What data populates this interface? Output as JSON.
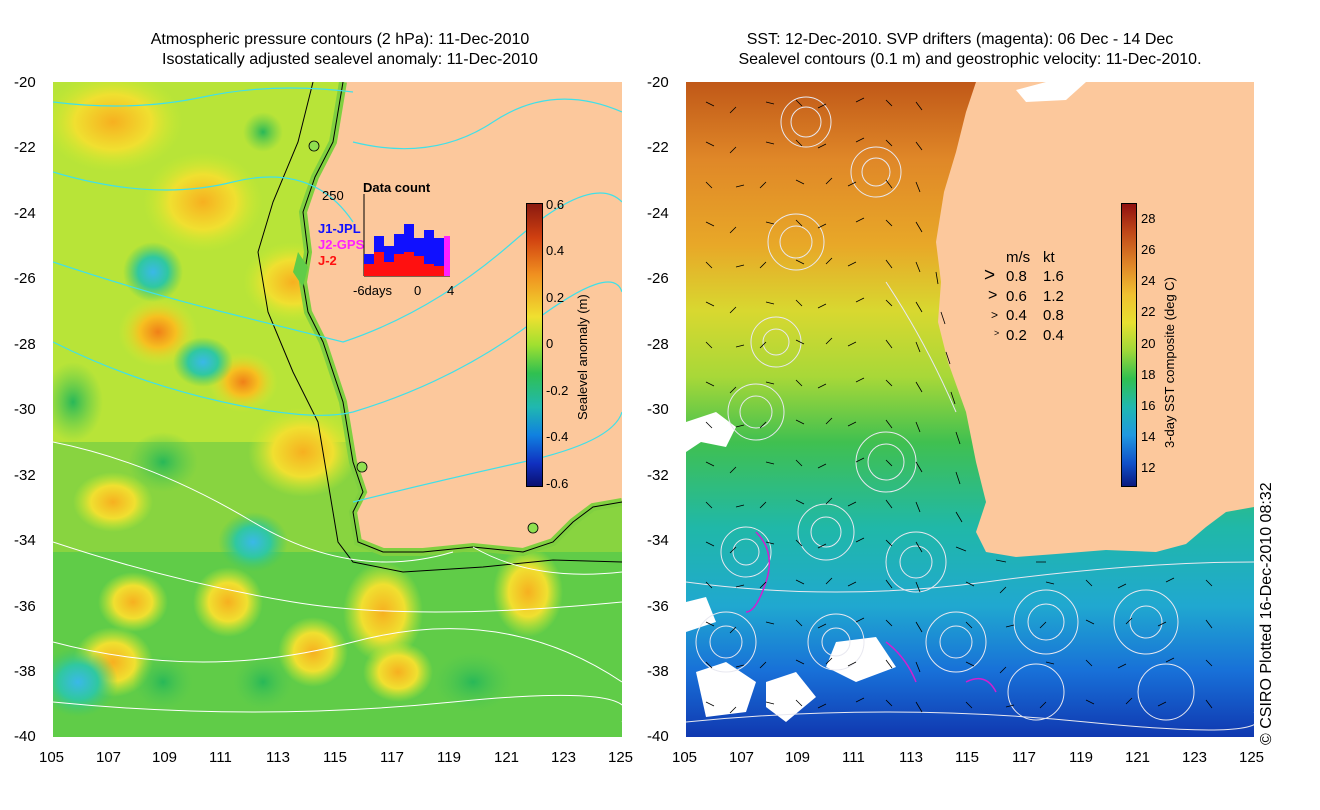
{
  "left_panel": {
    "title_line1": "Atmospheric pressure contours (2 hPa): 11-Dec-2010",
    "title_line2": "Isostatically adjusted sealevel anomaly: 11-Dec-2010",
    "colorbar": {
      "label": "Sealevel anomaly (m)",
      "ticks": [
        "0.6",
        "0.4",
        "0.2",
        "0",
        "-0.2",
        "-0.4",
        "-0.6"
      ],
      "range": [
        -0.6,
        0.6
      ]
    },
    "inset": {
      "title": "Data count",
      "ymax_label": "250",
      "x_labels": [
        "-6days",
        "0",
        "4"
      ],
      "legend": [
        {
          "name": "J1-JPL",
          "color": "#1010ff"
        },
        {
          "name": "J2-GPS",
          "color": "#ff20ff"
        },
        {
          "name": "J-2",
          "color": "#ff1010"
        }
      ]
    }
  },
  "right_panel": {
    "title_line1": "SST: 12-Dec-2010. SVP drifters (magenta): 06 Dec - 14 Dec",
    "title_line2": "Sealevel contours (0.1 m) and geostrophic velocity: 11-Dec-2010.",
    "colorbar": {
      "label": "3-day SST composite (deg C)",
      "ticks": [
        "28",
        "26",
        "24",
        "22",
        "20",
        "18",
        "16",
        "14",
        "12"
      ],
      "range": [
        11,
        29
      ]
    },
    "velocity_legend": {
      "header_ms": "m/s",
      "header_kt": "kt",
      "rows": [
        {
          "ms": "0.8",
          "kt": "1.6"
        },
        {
          "ms": "0.6",
          "kt": "1.2"
        },
        {
          "ms": "0.4",
          "kt": "0.8"
        },
        {
          "ms": "0.2",
          "kt": "0.4"
        }
      ]
    }
  },
  "axes": {
    "lat_ticks": [
      "-20",
      "-22",
      "-24",
      "-26",
      "-28",
      "-30",
      "-32",
      "-34",
      "-36",
      "-38",
      "-40"
    ],
    "lon_ticks": [
      "105",
      "107",
      "109",
      "111",
      "113",
      "115",
      "117",
      "119",
      "121",
      "123",
      "125"
    ],
    "lon_range": [
      105,
      125
    ],
    "lat_range": [
      -40,
      -20
    ]
  },
  "credit": "© CSIRO Plotted 16-Dec-2010 08:32",
  "colors": {
    "land": "#fcc89c",
    "contour_left": "#40e0e8",
    "contour_right": "#e8e8f0"
  }
}
